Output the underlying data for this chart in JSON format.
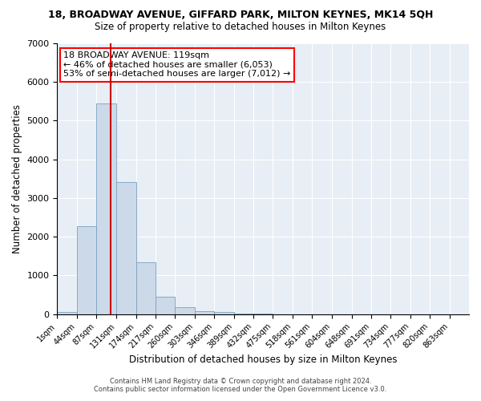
{
  "title": "18, BROADWAY AVENUE, GIFFARD PARK, MILTON KEYNES, MK14 5QH",
  "subtitle": "Size of property relative to detached houses in Milton Keynes",
  "xlabel": "Distribution of detached houses by size in Milton Keynes",
  "ylabel": "Number of detached properties",
  "footer_line1": "Contains HM Land Registry data © Crown copyright and database right 2024.",
  "footer_line2": "Contains public sector information licensed under the Open Government Licence v3.0.",
  "annotation_title": "18 BROADWAY AVENUE: 119sqm",
  "annotation_line2": "← 46% of detached houses are smaller (6,053)",
  "annotation_line3": "53% of semi-detached houses are larger (7,012) →",
  "property_sqm": 119,
  "bar_color": "#ccd9e8",
  "bar_edge_color": "#7aa0c0",
  "vline_color": "#cc0000",
  "background_color": "#e8eef5",
  "ylim": [
    0,
    7000
  ],
  "categories": [
    "1sqm",
    "44sqm",
    "87sqm",
    "131sqm",
    "174sqm",
    "217sqm",
    "260sqm",
    "303sqm",
    "346sqm",
    "389sqm",
    "432sqm",
    "475sqm",
    "518sqm",
    "561sqm",
    "604sqm",
    "648sqm",
    "691sqm",
    "734sqm",
    "777sqm",
    "820sqm",
    "863sqm"
  ],
  "bin_edges": [
    1,
    44,
    87,
    131,
    174,
    217,
    260,
    303,
    346,
    389,
    432,
    475,
    518,
    561,
    604,
    648,
    691,
    734,
    777,
    820,
    863
  ],
  "bar_heights": [
    60,
    2280,
    5450,
    3420,
    1350,
    450,
    175,
    80,
    50,
    15,
    5,
    0,
    0,
    0,
    0,
    0,
    0,
    0,
    0,
    0
  ]
}
